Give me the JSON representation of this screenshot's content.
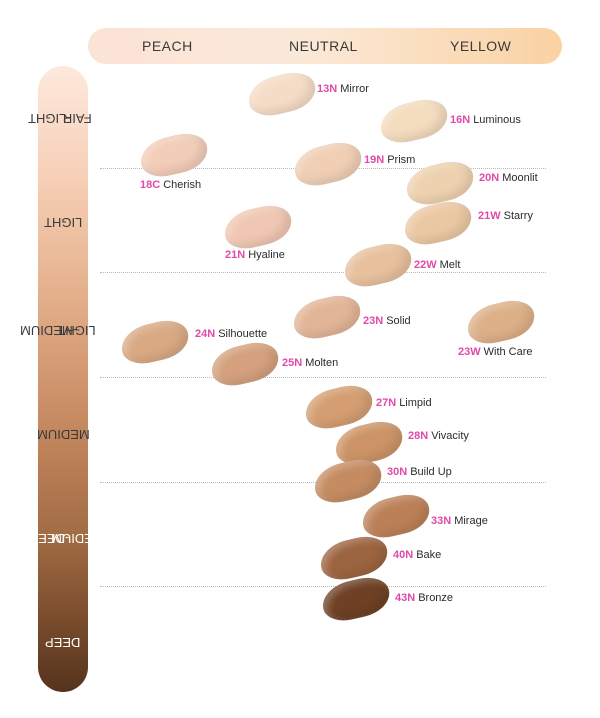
{
  "undertones": [
    "PEACH",
    "NEUTRAL",
    "YELLOW"
  ],
  "depths": [
    {
      "id": "fair-light",
      "line1": "FAIR",
      "line2": "-LIGHT"
    },
    {
      "id": "light",
      "line1": "LIGHT",
      "line2": ""
    },
    {
      "id": "light-medium",
      "line1": "LIGHT",
      "line2": "-MEDIUM"
    },
    {
      "id": "medium",
      "line1": "MEDIUM",
      "line2": ""
    },
    {
      "id": "medium-deep",
      "line1": "MEDIUM",
      "line2": "-DEEP"
    },
    {
      "id": "deep",
      "line1": "DEEP",
      "line2": ""
    }
  ],
  "shades": [
    {
      "code": "13N",
      "name": "Mirror",
      "color": "#f5dcc6"
    },
    {
      "code": "16N",
      "name": "Luminous",
      "color": "#f4dcbe"
    },
    {
      "code": "18C",
      "name": "Cherish",
      "color": "#f2cdb8"
    },
    {
      "code": "19N",
      "name": "Prism",
      "color": "#f0cfb5"
    },
    {
      "code": "20N",
      "name": "Moonlit",
      "color": "#eed2b0"
    },
    {
      "code": "21W",
      "name": "Starry",
      "color": "#ebc8a4"
    },
    {
      "code": "21N",
      "name": "Hyaline",
      "color": "#f0c7b2"
    },
    {
      "code": "22W",
      "name": "Melt",
      "color": "#e7c09e"
    },
    {
      "code": "23N",
      "name": "Solid",
      "color": "#e2b597"
    },
    {
      "code": "24N",
      "name": "Silhouette",
      "color": "#d9a984"
    },
    {
      "code": "23W",
      "name": "With Care",
      "color": "#ddb088"
    },
    {
      "code": "25N",
      "name": "Molten",
      "color": "#d4a07d"
    },
    {
      "code": "27N",
      "name": "Limpid",
      "color": "#d49e72"
    },
    {
      "code": "28N",
      "name": "Vivacity",
      "color": "#cc9466"
    },
    {
      "code": "30N",
      "name": "Build Up",
      "color": "#c58c62"
    },
    {
      "code": "33N",
      "name": "Mirage",
      "color": "#bc8058"
    },
    {
      "code": "40N",
      "name": "Bake",
      "color": "#9c6440"
    },
    {
      "code": "43N",
      "name": "Bronze",
      "color": "#6e4024"
    }
  ]
}
